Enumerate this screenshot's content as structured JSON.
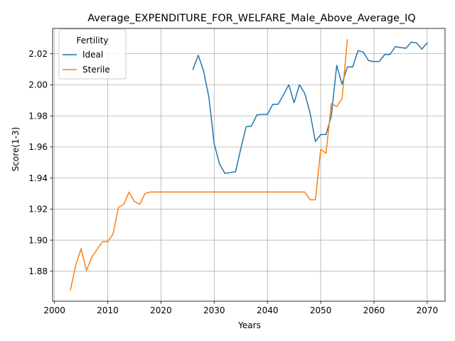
{
  "chart_data": {
    "type": "line",
    "title": "Average_EXPENDITURE_FOR_WELFARE_Male_Above_Average_IQ",
    "xlabel": "Years",
    "ylabel": "Score(1-3)",
    "xlim": [
      1999.65,
      2073.35
    ],
    "ylim": [
      1.8607,
      2.0363
    ],
    "xticks": [
      2000,
      2010,
      2020,
      2030,
      2040,
      2050,
      2060,
      2070
    ],
    "xtick_labels": [
      "2000",
      "2010",
      "2020",
      "2030",
      "2040",
      "2050",
      "2060",
      "2070"
    ],
    "yticks": [
      1.88,
      1.9,
      1.92,
      1.94,
      1.96,
      1.98,
      2.0,
      2.02
    ],
    "ytick_labels": [
      "1.88",
      "1.90",
      "1.92",
      "1.94",
      "1.96",
      "1.98",
      "2.00",
      "2.02"
    ],
    "grid": true,
    "legend": {
      "title": "Fertility",
      "position": "upper-left"
    },
    "series": [
      {
        "name": "Ideal",
        "color": "#1f77b4",
        "x": [
          2026,
          2027,
          2028,
          2029,
          2030,
          2031,
          2032,
          2033,
          2034,
          2035,
          2036,
          2037,
          2038,
          2039,
          2040,
          2041,
          2042,
          2043,
          2044,
          2045,
          2046,
          2047,
          2048,
          2049,
          2050,
          2051,
          2052,
          2053,
          2054,
          2055,
          2056,
          2057,
          2058,
          2059,
          2060,
          2061,
          2062,
          2063,
          2064,
          2065,
          2066,
          2067,
          2068,
          2069,
          2070
        ],
        "y": [
          2.01,
          2.019,
          2.009,
          1.992,
          1.962,
          1.949,
          1.943,
          1.9435,
          1.944,
          1.959,
          1.973,
          1.9735,
          1.9805,
          1.981,
          1.981,
          1.9875,
          1.9875,
          1.9935,
          2.0,
          1.9885,
          2.0,
          1.9945,
          1.982,
          1.9635,
          1.968,
          1.968,
          1.98,
          2.0125,
          2.0005,
          2.0115,
          2.0115,
          2.022,
          2.021,
          2.0155,
          2.015,
          2.015,
          2.0195,
          2.0195,
          2.0245,
          2.024,
          2.0235,
          2.0275,
          2.027,
          2.023,
          2.027
        ]
      },
      {
        "name": "Sterile",
        "color": "#ff7f0e",
        "x": [
          2003,
          2004,
          2005,
          2006,
          2007,
          2008,
          2009,
          2010,
          2011,
          2012,
          2013,
          2014,
          2015,
          2016,
          2017,
          2018,
          2019,
          2020,
          2021,
          2022,
          2023,
          2024,
          2025,
          2026,
          2027,
          2028,
          2029,
          2030,
          2031,
          2032,
          2033,
          2034,
          2035,
          2036,
          2037,
          2038,
          2039,
          2040,
          2041,
          2042,
          2043,
          2044,
          2045,
          2046,
          2047,
          2048,
          2049,
          2050,
          2051,
          2052,
          2053,
          2054,
          2055
        ],
        "y": [
          1.868,
          1.884,
          1.8945,
          1.8805,
          1.889,
          1.894,
          1.899,
          1.899,
          1.904,
          1.921,
          1.923,
          1.931,
          1.925,
          1.923,
          1.93,
          1.931,
          1.931,
          1.931,
          1.931,
          1.931,
          1.931,
          1.931,
          1.931,
          1.931,
          1.931,
          1.931,
          1.931,
          1.931,
          1.931,
          1.931,
          1.931,
          1.931,
          1.931,
          1.931,
          1.931,
          1.931,
          1.931,
          1.931,
          1.931,
          1.931,
          1.931,
          1.931,
          1.931,
          1.931,
          1.931,
          1.926,
          1.926,
          1.9585,
          1.956,
          1.988,
          1.986,
          1.991,
          2.029
        ]
      }
    ]
  }
}
